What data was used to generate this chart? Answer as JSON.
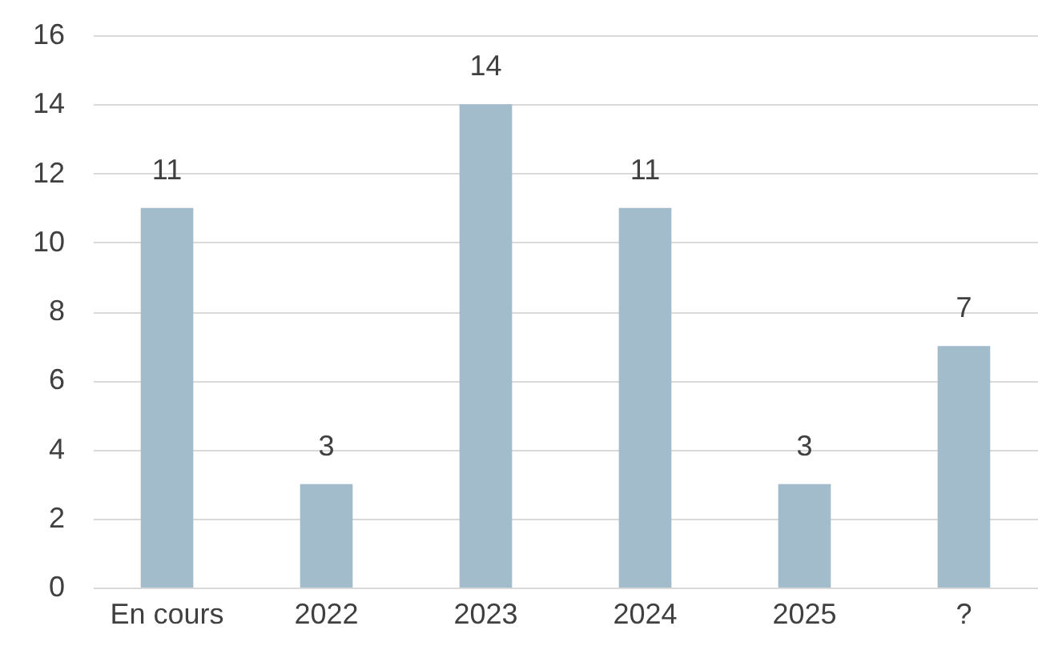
{
  "chart_data": {
    "type": "bar",
    "categories": [
      "En cours",
      "2022",
      "2023",
      "2024",
      "2025",
      "?"
    ],
    "values": [
      11,
      3,
      14,
      11,
      3,
      7
    ],
    "color": "#a3bccb",
    "ylim": [
      0,
      16
    ],
    "yticks": [
      0,
      2,
      4,
      6,
      8,
      10,
      12,
      14,
      16
    ],
    "grid": "y",
    "data_labels": true
  }
}
